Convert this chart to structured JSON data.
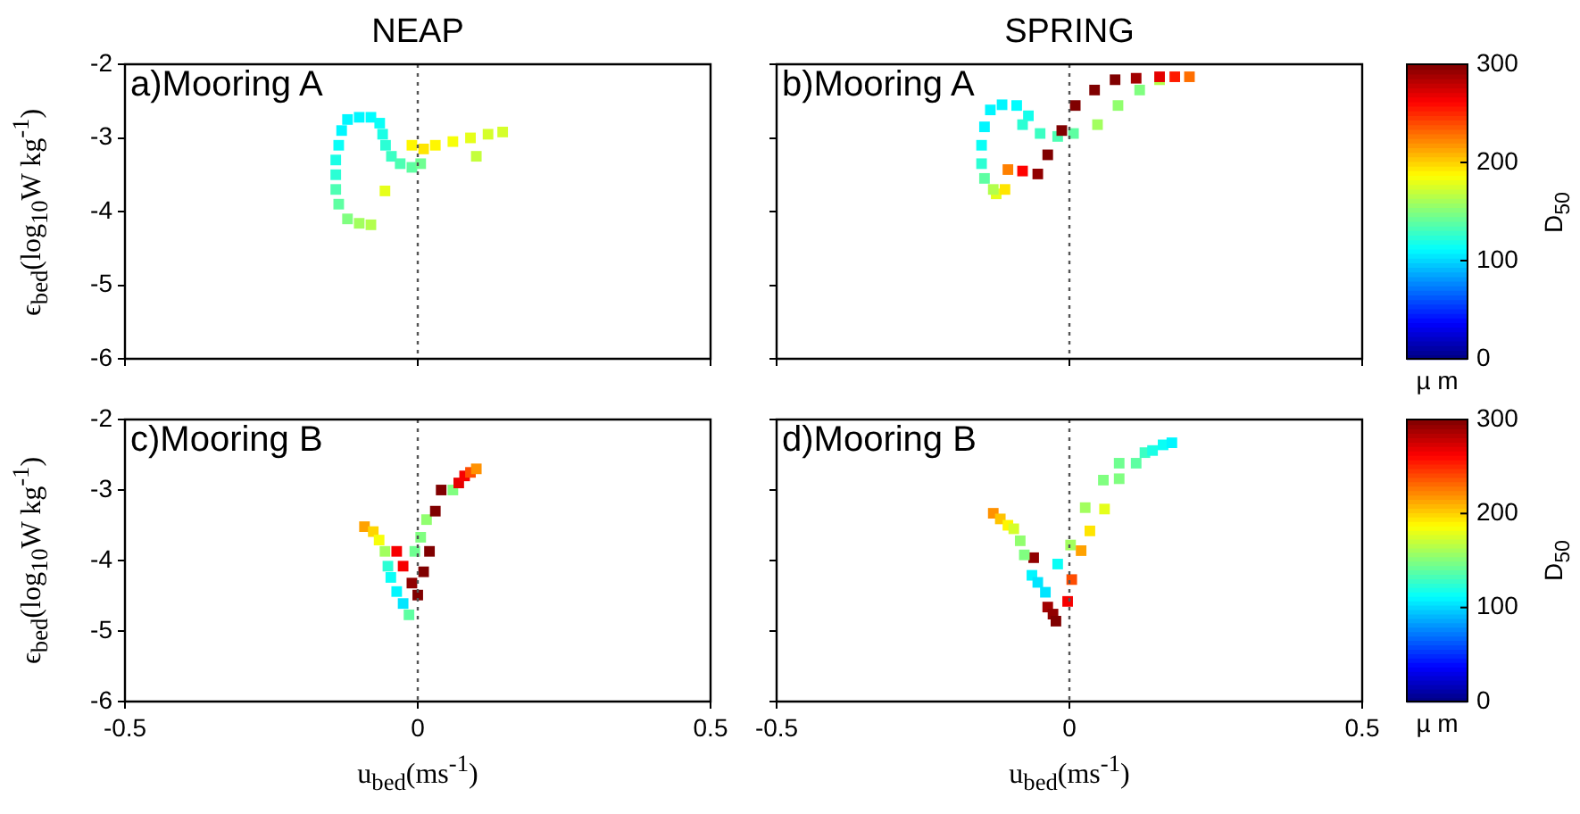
{
  "chart_data": [
    {
      "type": "scatter",
      "title": "NEAP",
      "ylabel": "ϵ$_{bed}$(log$_{10}$W kg$^{-1}$)",
      "annotations": [
        "a)Mooring A"
      ],
      "marker": "square",
      "tick_labels": "y",
      "xlim": [
        -0.5,
        0.5
      ],
      "ylim": [
        -6,
        -2
      ],
      "xticks": [
        -0.5,
        0,
        0.5
      ],
      "yticks": [
        -6,
        -5,
        -4,
        -3,
        -2
      ],
      "ref_lines": [
        {
          "axis": "x",
          "value": 0,
          "line_style": "dotted",
          "color": "#555555"
        }
      ],
      "x": [
        -0.08,
        -0.1,
        -0.12,
        -0.135,
        -0.14,
        -0.14,
        -0.14,
        -0.135,
        -0.13,
        -0.12,
        -0.1,
        -0.08,
        -0.065,
        -0.06,
        -0.055,
        -0.045,
        -0.03,
        -0.01,
        0.005,
        -0.056,
        -0.01,
        0.01,
        0.03,
        0.06,
        0.09,
        0.12,
        0.145,
        0.1
      ],
      "values": [
        -4.18,
        -4.16,
        -4.1,
        -3.9,
        -3.7,
        -3.5,
        -3.3,
        -3.1,
        -2.9,
        -2.75,
        -2.72,
        -2.72,
        -2.8,
        -2.95,
        -3.1,
        -3.25,
        -3.35,
        -3.4,
        -3.35,
        -3.72,
        -3.1,
        -3.15,
        -3.1,
        -3.05,
        -3.0,
        -2.95,
        -2.92,
        -3.25
      ],
      "colors": [
        "#b3ff4d",
        "#a2ff5e",
        "#80ff80",
        "#5effa2",
        "#4dffb3",
        "#2bffd5",
        "#1affe6",
        "#09fff7",
        "#00f7ff",
        "#00f7ff",
        "#00f7ff",
        "#00fdff",
        "#09fff7",
        "#1affe6",
        "#2bffd5",
        "#3cffc4",
        "#4dffb3",
        "#5effa2",
        "#6fff91",
        "#e6ff1a",
        "#fff700",
        "#ffe600",
        "#fff700",
        "#f7ff09",
        "#e6ff1a",
        "#d5ff2b",
        "#d5ff2b",
        "#c4ff3c"
      ]
    },
    {
      "type": "scatter",
      "title": "SPRING",
      "annotations": [
        "b)Mooring A",
        "µ m"
      ],
      "marker": "square",
      "tick_labels": false,
      "xlim": [
        -0.5,
        0.5
      ],
      "ylim": [
        -6,
        -2
      ],
      "xticks": [
        -0.5,
        0,
        0.5
      ],
      "yticks": [
        -6,
        -5,
        -4,
        -3,
        -2
      ],
      "clim": [
        0,
        300
      ],
      "cticks": [
        0,
        100,
        200,
        300
      ],
      "clabel": "D$_{50}$",
      "ref_lines": [
        {
          "axis": "x",
          "value": 0,
          "line_style": "dotted",
          "color": "#555555"
        }
      ],
      "x": [
        -0.125,
        -0.11,
        -0.13,
        -0.145,
        -0.15,
        -0.15,
        -0.145,
        -0.135,
        -0.115,
        -0.09,
        -0.07,
        -0.08,
        -0.05,
        -0.02,
        0.007,
        0.048,
        0.083,
        0.12,
        0.154,
        -0.105,
        -0.08,
        -0.054,
        -0.037,
        -0.013,
        0.01,
        0.043,
        0.078,
        0.114,
        0.154,
        0.18,
        0.205
      ],
      "values": [
        -3.76,
        -3.7,
        -3.7,
        -3.55,
        -3.35,
        -3.1,
        -2.85,
        -2.62,
        -2.55,
        -2.56,
        -2.7,
        -2.82,
        -2.94,
        -2.98,
        -2.94,
        -2.82,
        -2.56,
        -2.35,
        -2.21,
        -3.43,
        -3.45,
        -3.49,
        -3.23,
        -2.9,
        -2.56,
        -2.35,
        -2.21,
        -2.19,
        -2.17,
        -2.17,
        -2.17
      ],
      "cvalues": [
        180,
        195,
        165,
        140,
        125,
        115,
        110,
        110,
        110,
        112,
        118,
        125,
        130,
        135,
        140,
        160,
        155,
        150,
        165,
        225,
        262,
        295,
        300,
        300,
        300,
        300,
        300,
        290,
        270,
        255,
        230
      ]
    },
    {
      "type": "scatter",
      "ylabel": "ϵ$_{bed}$(log$_{10}$W kg$^{-1}$)",
      "xlabel": "u$_{bed}$(ms$^{-1}$)",
      "annotations": [
        "c)Mooring B"
      ],
      "marker": "square",
      "xlim": [
        -0.5,
        0.5
      ],
      "ylim": [
        -6,
        -2
      ],
      "xticks": [
        -0.5,
        0,
        0.5
      ],
      "yticks": [
        -6,
        -5,
        -4,
        -3,
        -2
      ],
      "ref_lines": [
        {
          "axis": "x",
          "value": 0,
          "line_style": "dotted",
          "color": "#555555"
        }
      ],
      "x": [
        -0.091,
        -0.076,
        -0.066,
        -0.056,
        -0.051,
        -0.046,
        -0.036,
        -0.025,
        -0.015,
        -0.036,
        -0.025,
        -0.01,
        0,
        0.01,
        0.02,
        -0.005,
        0.005,
        0.015,
        0.03,
        0.04,
        0.06,
        0.07,
        0.08,
        0.09,
        0.1
      ],
      "values": [
        -3.52,
        -3.59,
        -3.71,
        -3.87,
        -4.08,
        -4.24,
        -4.44,
        -4.61,
        -4.77,
        -3.87,
        -4.08,
        -4.32,
        -4.49,
        -4.16,
        -3.87,
        -3.87,
        -3.67,
        -3.42,
        -3.3,
        -3.0,
        -3.0,
        -2.9,
        -2.8,
        -2.75,
        -2.7
      ],
      "colors": [
        "#ffa200",
        "#ffd500",
        "#f7ff09",
        "#a2ff5e",
        "#2bffd5",
        "#09fff7",
        "#00f7ff",
        "#00e6ff",
        "#5effa2",
        "#f70000",
        "#f70000",
        "#910000",
        "#800000",
        "#800000",
        "#800000",
        "#6fff91",
        "#80ff80",
        "#91ff6f",
        "#800000",
        "#800000",
        "#80ff80",
        "#e60000",
        "#f70000",
        "#ff4d00",
        "#ff9100"
      ]
    },
    {
      "type": "scatter",
      "xlabel": "u$_{bed}$(ms$^{-1}$)",
      "annotations": [
        "d)Mooring B",
        "µ m"
      ],
      "marker": "square",
      "tick_labels": "x",
      "xlim": [
        -0.5,
        0.5
      ],
      "ylim": [
        -6,
        -2
      ],
      "xticks": [
        -0.5,
        0,
        0.5
      ],
      "yticks": [
        -6,
        -5,
        -4,
        -3,
        -2
      ],
      "clim": [
        0,
        300
      ],
      "cticks": [
        0,
        100,
        200,
        300
      ],
      "clabel": "D$_{50}$",
      "ref_lines": [
        {
          "axis": "x",
          "value": 0,
          "line_style": "dotted",
          "color": "#555555"
        }
      ],
      "x": [
        -0.061,
        -0.13,
        -0.118,
        -0.105,
        -0.095,
        -0.084,
        -0.077,
        -0.064,
        -0.054,
        -0.041,
        -0.037,
        -0.028,
        -0.023,
        -0.02,
        -0.003,
        0.004,
        0.002,
        0.02,
        0.035,
        0.027,
        0.06,
        0.058,
        0.085,
        0.085,
        0.114,
        0.129,
        0.142,
        0.16,
        0.175
      ],
      "values": [
        -3.96,
        -3.33,
        -3.41,
        -3.5,
        -3.55,
        -3.72,
        -3.92,
        -4.21,
        -4.31,
        -4.45,
        -4.66,
        -4.76,
        -4.86,
        -4.05,
        -4.58,
        -4.27,
        -3.78,
        -3.86,
        -3.58,
        -3.25,
        -3.27,
        -2.86,
        -2.84,
        -2.62,
        -2.62,
        -2.47,
        -2.44,
        -2.36,
        -2.33
      ],
      "cvalues": [
        295,
        220,
        205,
        190,
        175,
        155,
        150,
        110,
        105,
        105,
        290,
        295,
        300,
        115,
        265,
        240,
        160,
        215,
        195,
        160,
        180,
        150,
        150,
        145,
        140,
        130,
        120,
        115,
        110
      ]
    }
  ]
}
